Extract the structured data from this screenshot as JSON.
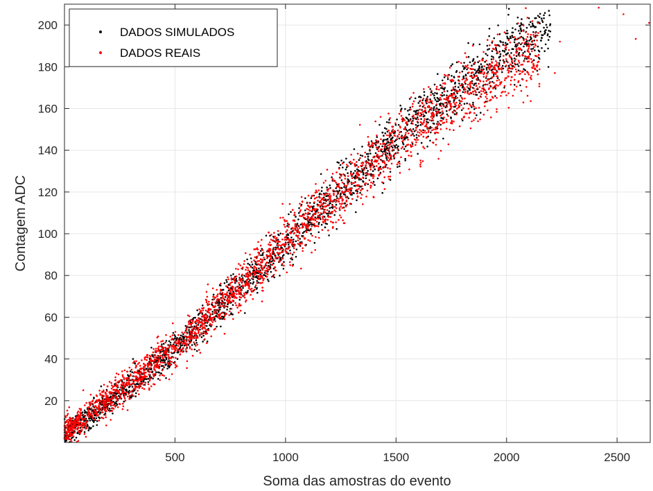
{
  "chart_data": {
    "type": "scatter",
    "xlabel": "Soma das amostras do evento",
    "ylabel": "Contagem ADC",
    "xlim": [
      0,
      2650
    ],
    "ylim": [
      0,
      210
    ],
    "xticks": [
      500,
      1000,
      1500,
      2000,
      2500
    ],
    "yticks": [
      20,
      40,
      60,
      80,
      100,
      120,
      140,
      160,
      180,
      200
    ],
    "grid": true,
    "legend_position": "top-left",
    "series": [
      {
        "name": "DADOS SIMULADOS",
        "color": "#000000",
        "marker": "dot",
        "trend": [
          [
            0,
            3
          ],
          [
            500,
            44
          ],
          [
            1000,
            95
          ],
          [
            1500,
            146
          ],
          [
            2000,
            186
          ],
          [
            2150,
            196
          ]
        ],
        "x_range": [
          0,
          2200
        ],
        "approx_spread_y": 3.0
      },
      {
        "name": "DADOS REAIS",
        "color": "#ff0000",
        "marker": "dot",
        "trend": [
          [
            0,
            5
          ],
          [
            500,
            45
          ],
          [
            1000,
            96
          ],
          [
            1500,
            143
          ],
          [
            2000,
            181
          ],
          [
            2650,
            205
          ]
        ],
        "x_range": [
          0,
          2650
        ],
        "approx_spread_y": 3.5
      }
    ]
  }
}
